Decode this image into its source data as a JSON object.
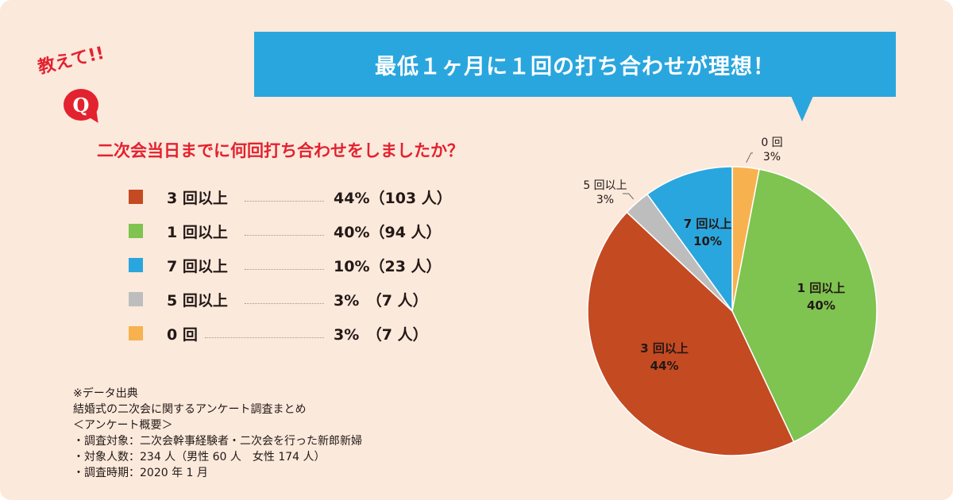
{
  "banner": {
    "title": "最低１ヶ月に１回の打ち合わせが理想！"
  },
  "badge": {
    "exclaim": "教えて!!",
    "q": "Q"
  },
  "question": "二次会当日までに何回打ち合わせをしましたか？",
  "legend": [
    {
      "label": "3 回以上",
      "value": "44%（103 人）"
    },
    {
      "label": "1 回以上",
      "value": "40%（94 人）"
    },
    {
      "label": "7 回以上",
      "value": "10%（23 人）"
    },
    {
      "label": "5 回以上",
      "value": "3%　（7 人）"
    },
    {
      "label": "0 回",
      "value": "3%　（7 人）"
    }
  ],
  "notes": [
    "※データ出典",
    "結婚式の二次会に関するアンケート調査まとめ",
    "＜アンケート概要＞",
    "・調査対象：二次会幹事経験者・二次会を行った新郎新婦",
    "・対象人数：234 人（男性 60 人　女性 174 人）",
    "・調査時期：2020 年 1 月"
  ],
  "colors": {
    "three_plus": "#c44a22",
    "one_plus": "#7fc350",
    "seven_plus": "#2aa6de",
    "five_plus": "#bdbdbd",
    "zero": "#f7b24f",
    "banner": "#2aa6de",
    "accent_red": "#e3222f",
    "background": "#fbe9dc"
  },
  "chart_data": {
    "type": "pie",
    "title": "二次会当日までに何回打ち合わせをしましたか？",
    "slices": [
      {
        "label": "0 回",
        "pct_label": "3%",
        "value": 3,
        "count": 7,
        "color": "#f7b24f"
      },
      {
        "label": "1 回以上",
        "pct_label": "40%",
        "value": 40,
        "count": 94,
        "color": "#7fc350"
      },
      {
        "label": "3 回以上",
        "pct_label": "44%",
        "value": 44,
        "count": 103,
        "color": "#c44a22"
      },
      {
        "label": "5 回以上",
        "pct_label": "3%",
        "value": 3,
        "count": 7,
        "color": "#bdbdbd"
      },
      {
        "label": "7 回以上",
        "pct_label": "10%",
        "value": 10,
        "count": 23,
        "color": "#2aa6de"
      }
    ]
  }
}
